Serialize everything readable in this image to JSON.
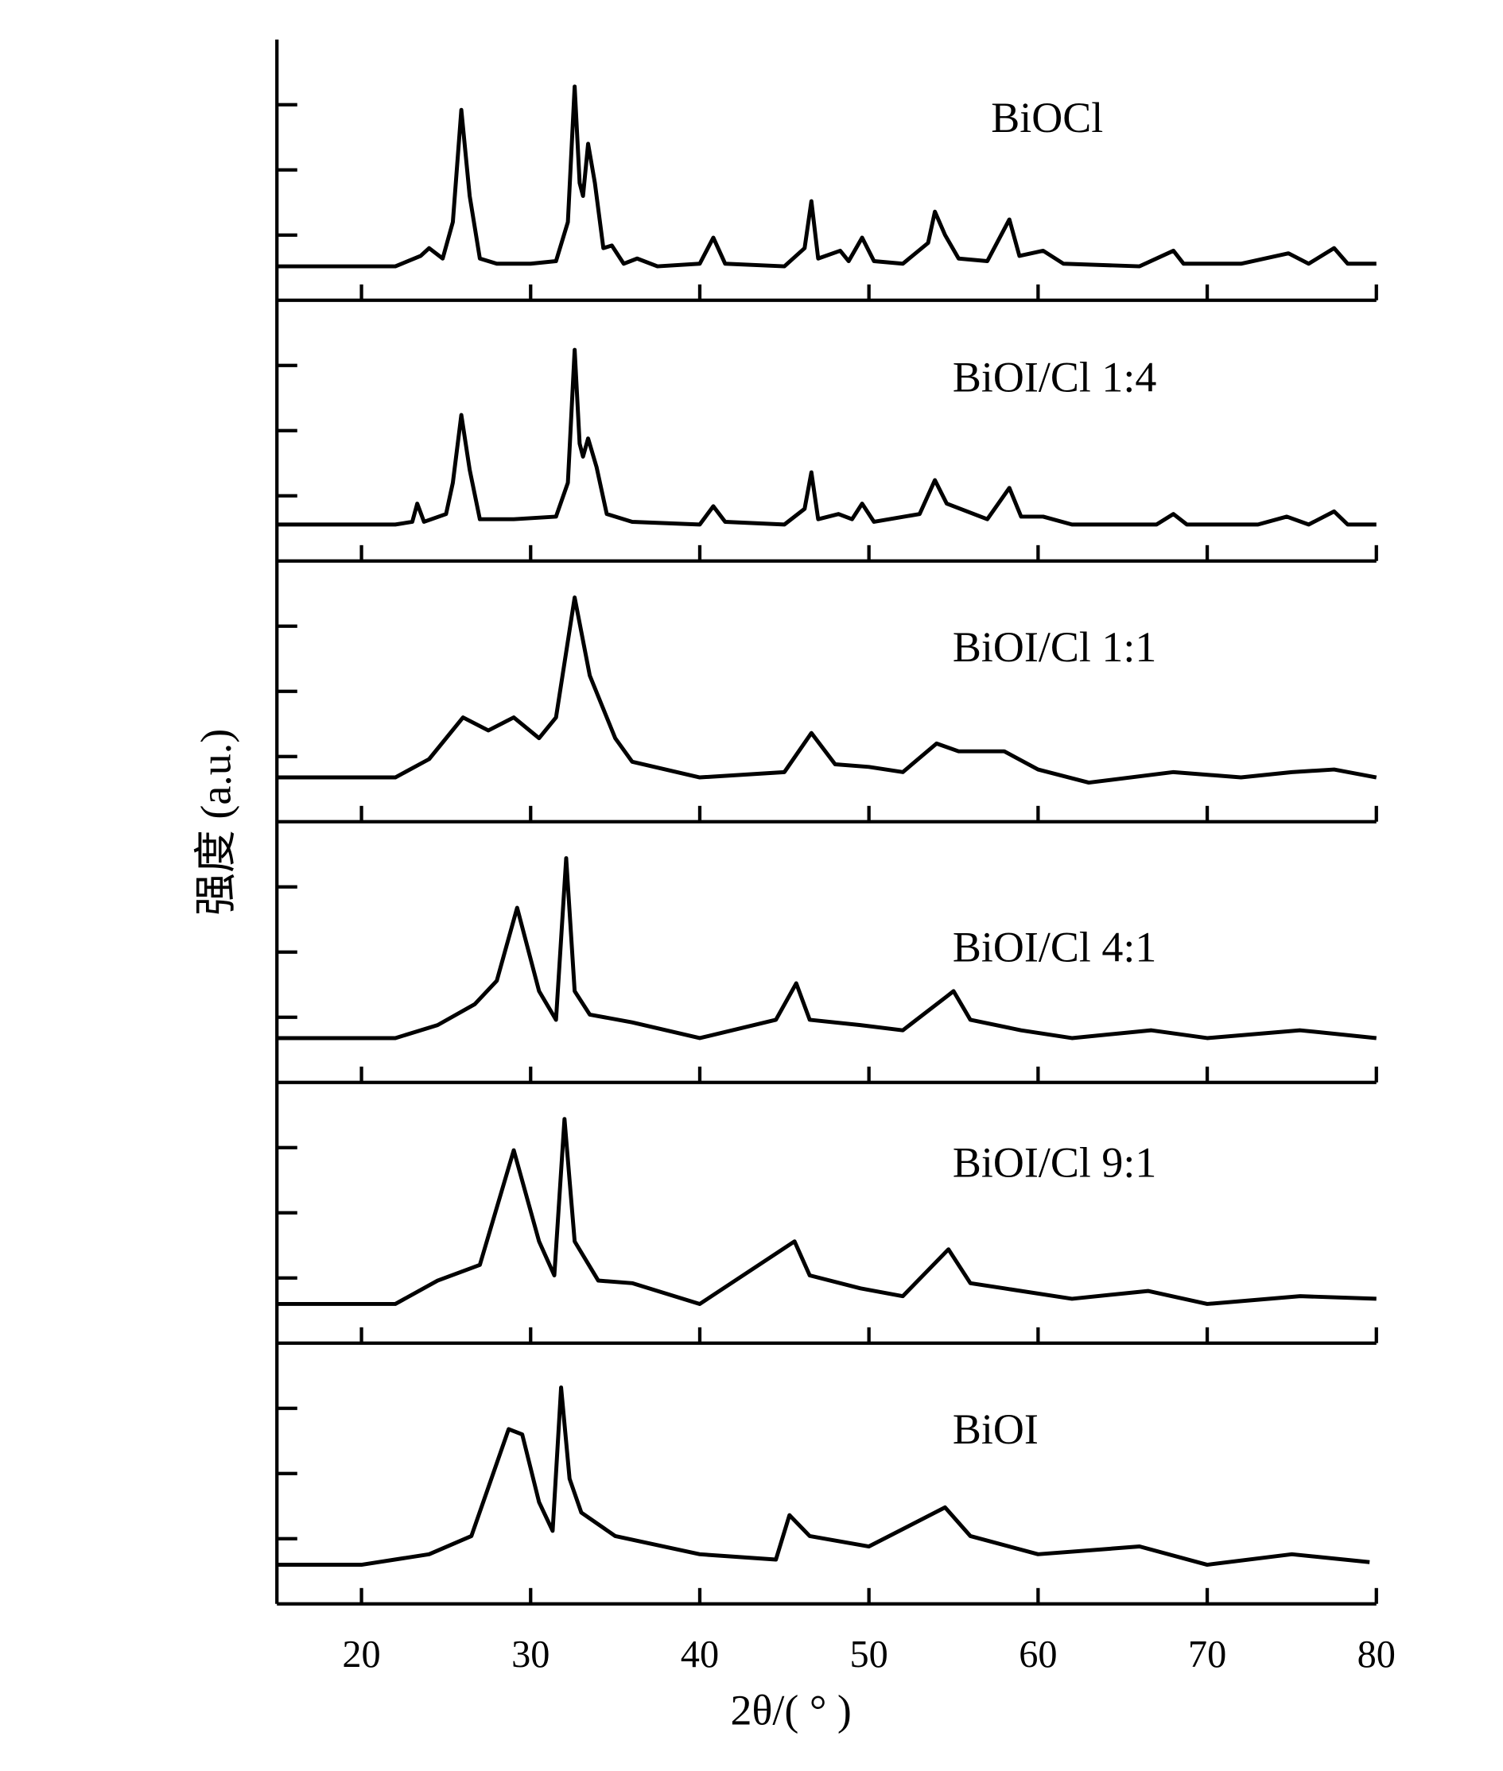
{
  "chart_data": {
    "type": "line",
    "xlabel": "2θ/( ° )",
    "ylabel": "强度 (a.u.)",
    "xlim": [
      15,
      80
    ],
    "xticks": [
      20,
      30,
      40,
      50,
      60,
      70,
      80
    ],
    "ylim": [
      0,
      100
    ],
    "yticks": [
      25,
      50,
      75
    ],
    "series": [
      {
        "name": "BiOCl",
        "color": "#000000",
        "x": [
          15,
          20,
          22,
          23.5,
          24,
          24.8,
          25.4,
          25.9,
          26.4,
          27,
          28,
          30,
          31.5,
          32.2,
          32.6,
          32.9,
          33.1,
          33.4,
          33.8,
          34.3,
          34.8,
          35.5,
          36.3,
          37.5,
          40,
          40.8,
          41.5,
          45,
          46.2,
          46.6,
          47,
          48.3,
          48.8,
          49.6,
          50.3,
          52,
          53.5,
          53.9,
          54.5,
          55.3,
          57,
          58.3,
          58.9,
          60.3,
          61.5,
          66,
          68,
          68.6,
          72,
          74.8,
          76,
          77.5,
          78.3,
          80
        ],
        "values": [
          13,
          13,
          13,
          17,
          20,
          16,
          30,
          73,
          40,
          16,
          14,
          14,
          15,
          30,
          82,
          45,
          40,
          60,
          45,
          20,
          21,
          14,
          16,
          13,
          14,
          24,
          14,
          13,
          20,
          38,
          16,
          19,
          15,
          24,
          15,
          14,
          22,
          34,
          25,
          16,
          15,
          31,
          17,
          19,
          14,
          13,
          19,
          14,
          14,
          18,
          14,
          20,
          14,
          14
        ]
      },
      {
        "name": "BiOI/Cl 1:4",
        "color": "#000000",
        "x": [
          15,
          20,
          22,
          23,
          23.3,
          23.7,
          25,
          25.4,
          25.9,
          26.4,
          27,
          29,
          31.5,
          32.2,
          32.6,
          32.9,
          33.1,
          33.4,
          33.9,
          34.5,
          36,
          40,
          40.8,
          41.5,
          45,
          46.2,
          46.6,
          47,
          48.2,
          49,
          49.6,
          50.3,
          53,
          53.9,
          54.6,
          57,
          58.3,
          59,
          60.3,
          62,
          67,
          68,
          68.8,
          73,
          74.7,
          76,
          77.5,
          78.3,
          80
        ],
        "values": [
          14,
          14,
          14,
          15,
          22,
          15,
          18,
          30,
          56,
          35,
          16,
          16,
          17,
          30,
          81,
          45,
          40,
          47,
          36,
          18,
          15,
          14,
          21,
          15,
          14,
          20,
          34,
          16,
          18,
          16,
          22,
          15,
          18,
          31,
          22,
          16,
          28,
          17,
          17,
          14,
          14,
          18,
          14,
          14,
          17,
          14,
          19,
          14,
          14
        ]
      },
      {
        "name": "BiOI/Cl 1:1",
        "color": "#000000",
        "x": [
          15,
          20,
          22,
          24,
          26,
          27.5,
          29,
          30.5,
          31.5,
          32.6,
          33.5,
          35,
          36,
          40,
          45,
          46.6,
          48,
          50,
          52,
          54,
          55.3,
          58,
          60,
          63,
          68,
          72,
          75,
          77.5,
          80
        ],
        "values": [
          17,
          17,
          17,
          24,
          40,
          35,
          40,
          32,
          40,
          86,
          56,
          32,
          23,
          17,
          19,
          34,
          22,
          21,
          19,
          30,
          27,
          27,
          20,
          15,
          19,
          17,
          19,
          20,
          17
        ]
      },
      {
        "name": "BiOI/Cl 4:1",
        "color": "#000000",
        "x": [
          15,
          20,
          22,
          24.5,
          26.7,
          28,
          29.2,
          30.5,
          31.5,
          32.1,
          32.6,
          33.5,
          36,
          40,
          44.5,
          45.7,
          46.5,
          49.5,
          52,
          54.6,
          55,
          56,
          59,
          62,
          66.7,
          70,
          75.5,
          80
        ],
        "values": [
          17,
          17,
          17,
          22,
          30,
          39,
          67,
          35,
          24,
          86,
          35,
          26,
          23,
          17,
          24,
          38,
          24,
          22,
          20,
          33,
          35,
          24,
          20,
          17,
          20,
          17,
          20,
          17
        ]
      },
      {
        "name": "BiOI/Cl 9:1",
        "color": "#000000",
        "x": [
          15,
          20,
          22,
          24.5,
          27,
          29,
          30.5,
          31.4,
          32,
          32.6,
          34,
          36,
          40,
          45.6,
          46.5,
          49.5,
          52,
          54.7,
          56,
          58,
          62,
          66.5,
          70,
          75.5,
          80
        ],
        "values": [
          15,
          15,
          15,
          24,
          30,
          74,
          39,
          26,
          86,
          39,
          24,
          23,
          15,
          39,
          26,
          21,
          18,
          36,
          23,
          21,
          17,
          20,
          15,
          18,
          17
        ]
      },
      {
        "name": "BiOI",
        "color": "#000000",
        "x": [
          15,
          20,
          24,
          26.5,
          28.7,
          29.5,
          30.5,
          31.3,
          31.8,
          32.3,
          33,
          35,
          40,
          44.5,
          45.3,
          46.5,
          50,
          54.5,
          56,
          60,
          66,
          70,
          75,
          79.6
        ],
        "values": [
          15,
          15,
          19,
          26,
          67,
          65,
          39,
          28,
          83,
          48,
          35,
          26,
          19,
          17,
          34,
          26,
          22,
          37,
          26,
          19,
          22,
          15,
          19,
          16
        ]
      }
    ]
  }
}
